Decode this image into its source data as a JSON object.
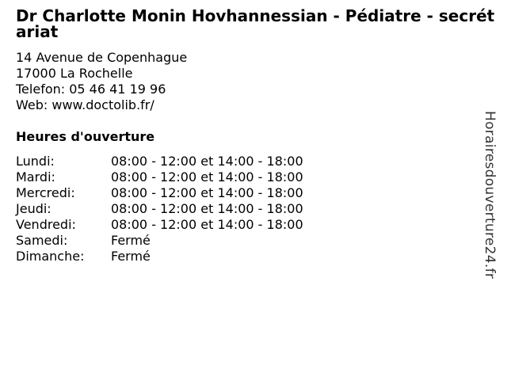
{
  "page": {
    "title": "Dr Charlotte Monin Hovhannessian - Pédiatre - secrétariat",
    "address": {
      "street": "14 Avenue de Copenhague",
      "city": "17000 La Rochelle",
      "phone": "Telefon: 05 46 41 19 96",
      "web": "Web: www.doctolib.fr/"
    },
    "hours": {
      "heading": "Heures d'ouverture",
      "rows": [
        {
          "day": "Lundi:",
          "time": "08:00 - 12:00 et 14:00 - 18:00"
        },
        {
          "day": "Mardi:",
          "time": "08:00 - 12:00 et 14:00 - 18:00"
        },
        {
          "day": "Mercredi:",
          "time": "08:00 - 12:00 et 14:00 - 18:00"
        },
        {
          "day": "Jeudi:",
          "time": "08:00 - 12:00 et 14:00 - 18:00"
        },
        {
          "day": "Vendredi:",
          "time": "08:00 - 12:00 et 14:00 - 18:00"
        },
        {
          "day": "Samedi:",
          "time": "Fermé"
        },
        {
          "day": "Dimanche:",
          "time": "Fermé"
        }
      ]
    },
    "watermark": "Horairesdouverture24.fr",
    "colors": {
      "text": "#000000",
      "background": "#ffffff",
      "watermark": "#333333"
    }
  }
}
